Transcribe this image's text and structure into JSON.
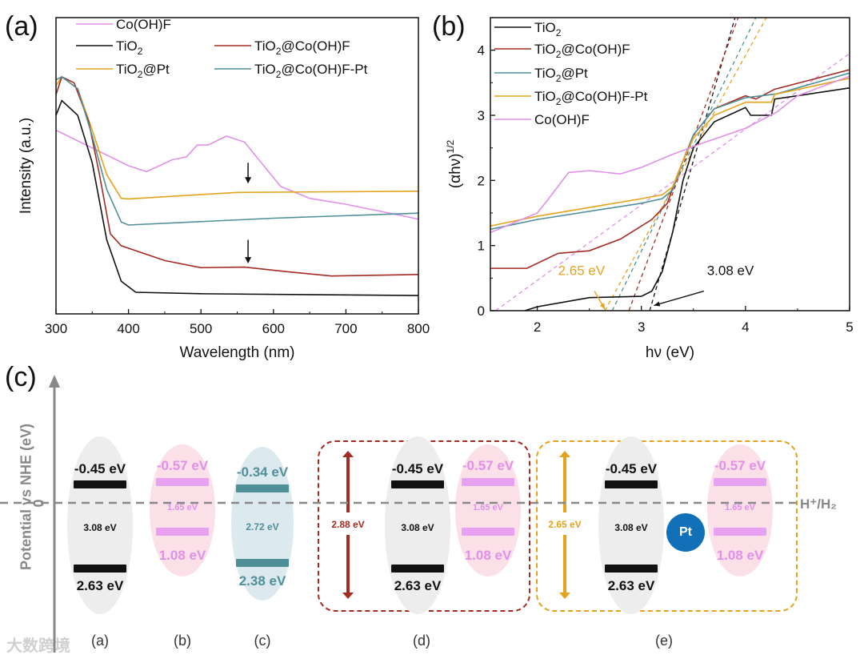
{
  "panel_labels": {
    "a": "(a)",
    "b": "(b)",
    "c": "(c)"
  },
  "colors": {
    "black": "#111111",
    "red": "#a52a22",
    "orange": "#e6a21c",
    "teal": "#4f8f98",
    "pink": "#e090e8",
    "gray": "#888888",
    "pt_blue": "#1170b8"
  },
  "chart_data": [
    {
      "type": "line",
      "title": "",
      "xlabel": "Wavelength (nm)",
      "ylabel": "Intensity (a.u.)",
      "xlim": [
        300,
        800
      ],
      "ylim": [
        0,
        1
      ],
      "xticks": [
        "300",
        "400",
        "500",
        "600",
        "700",
        "800"
      ],
      "legend": "top-left",
      "annotations": [
        {
          "type": "arrow",
          "x": 565,
          "y_from": 0.51,
          "y_to": 0.44
        },
        {
          "type": "arrow",
          "x": 565,
          "y_from": 0.25,
          "y_to": 0.17
        }
      ],
      "series": [
        {
          "name": "Co(OH)F",
          "name_main": "Co(OH)F",
          "color": "#e090e8",
          "points": [
            [
              300,
              0.62
            ],
            [
              350,
              0.56
            ],
            [
              400,
              0.5
            ],
            [
              425,
              0.48
            ],
            [
              460,
              0.52
            ],
            [
              480,
              0.53
            ],
            [
              495,
              0.57
            ],
            [
              510,
              0.57
            ],
            [
              535,
              0.6
            ],
            [
              560,
              0.58
            ],
            [
              590,
              0.49
            ],
            [
              610,
              0.43
            ],
            [
              650,
              0.39
            ],
            [
              700,
              0.37
            ],
            [
              800,
              0.32
            ]
          ]
        },
        {
          "name": "TiO2",
          "name_main": "TiO",
          "name_sub": "2",
          "name_tail": "",
          "color": "#111111",
          "points": [
            [
              300,
              0.67
            ],
            [
              308,
              0.72
            ],
            [
              330,
              0.67
            ],
            [
              350,
              0.51
            ],
            [
              370,
              0.25
            ],
            [
              390,
              0.11
            ],
            [
              410,
              0.073
            ],
            [
              500,
              0.068
            ],
            [
              800,
              0.062
            ]
          ]
        },
        {
          "name": "TiO2@Pt",
          "name_main": "TiO",
          "name_sub": "2",
          "name_tail": "@Pt",
          "color": "#e6a21c",
          "points": [
            [
              300,
              0.77
            ],
            [
              308,
              0.8
            ],
            [
              330,
              0.76
            ],
            [
              350,
              0.62
            ],
            [
              370,
              0.47
            ],
            [
              390,
              0.39
            ],
            [
              400,
              0.388
            ],
            [
              550,
              0.41
            ],
            [
              800,
              0.414
            ]
          ]
        },
        {
          "name": "TiO2@Co(OH)F",
          "name_main": "TiO",
          "name_sub": "2",
          "name_tail": "@Co(OH)F",
          "color": "#a52a22",
          "points": [
            [
              300,
              0.74
            ],
            [
              308,
              0.8
            ],
            [
              325,
              0.78
            ],
            [
              345,
              0.65
            ],
            [
              360,
              0.47
            ],
            [
              375,
              0.27
            ],
            [
              390,
              0.23
            ],
            [
              450,
              0.18
            ],
            [
              500,
              0.156
            ],
            [
              560,
              0.158
            ],
            [
              620,
              0.142
            ],
            [
              680,
              0.128
            ],
            [
              800,
              0.133
            ]
          ]
        },
        {
          "name": "TiO2@Co(OH)F-Pt",
          "name_main": "TiO",
          "name_sub": "2",
          "name_tail": "@Co(OH)F-Pt",
          "color": "#4f8f98",
          "points": [
            [
              300,
              0.79
            ],
            [
              308,
              0.8
            ],
            [
              330,
              0.76
            ],
            [
              350,
              0.6
            ],
            [
              370,
              0.42
            ],
            [
              390,
              0.31
            ],
            [
              400,
              0.3
            ],
            [
              600,
              0.323
            ],
            [
              800,
              0.34
            ]
          ]
        }
      ]
    },
    {
      "type": "line",
      "title": "",
      "xlabel": "hν (eV)",
      "ylabel_main": "(αhν)",
      "ylabel_sup": "1/2",
      "xlim": [
        1.55,
        5
      ],
      "ylim": [
        0,
        4.5
      ],
      "xticks": [
        "2",
        "3",
        "4",
        "5"
      ],
      "yticks": [
        "0",
        "1",
        "2",
        "3",
        "4"
      ],
      "legend": "top-left",
      "series": [
        {
          "name": "TiO2",
          "name_main": "TiO",
          "name_sub": "2",
          "name_tail": "",
          "color": "#111111",
          "points": [
            [
              1.88,
              0
            ],
            [
              2,
              0.06
            ],
            [
              2.5,
              0.2
            ],
            [
              3,
              0.22
            ],
            [
              3.1,
              0.3
            ],
            [
              3.2,
              0.6
            ],
            [
              3.3,
              1.2
            ],
            [
              3.4,
              2.0
            ],
            [
              3.5,
              2.5
            ],
            [
              3.7,
              2.9
            ],
            [
              4,
              3.12
            ],
            [
              4.05,
              3.0
            ],
            [
              4.25,
              3.0
            ],
            [
              4.28,
              3.25
            ],
            [
              4.5,
              3.3
            ],
            [
              5,
              3.42
            ]
          ]
        },
        {
          "name": "TiO2@Co(OH)F",
          "name_main": "TiO",
          "name_sub": "2",
          "name_tail": "@Co(OH)F",
          "color": "#a52a22",
          "points": [
            [
              1.55,
              0.65
            ],
            [
              1.9,
              0.65
            ],
            [
              2.2,
              0.88
            ],
            [
              2.5,
              0.92
            ],
            [
              2.8,
              1.1
            ],
            [
              3.1,
              1.4
            ],
            [
              3.25,
              1.65
            ],
            [
              3.35,
              2.1
            ],
            [
              3.5,
              2.7
            ],
            [
              3.7,
              3.1
            ],
            [
              4,
              3.3
            ],
            [
              4.1,
              3.25
            ],
            [
              4.28,
              3.4
            ],
            [
              5,
              3.7
            ]
          ]
        },
        {
          "name": "TiO2@Pt",
          "name_main": "TiO",
          "name_sub": "2",
          "name_tail": "@Pt",
          "color": "#4f8f98",
          "points": [
            [
              1.55,
              1.25
            ],
            [
              2,
              1.4
            ],
            [
              3,
              1.65
            ],
            [
              3.2,
              1.72
            ],
            [
              3.3,
              1.85
            ],
            [
              3.4,
              2.3
            ],
            [
              3.5,
              2.7
            ],
            [
              3.7,
              3.1
            ],
            [
              4,
              3.27
            ],
            [
              4.3,
              3.33
            ],
            [
              5,
              3.65
            ]
          ]
        },
        {
          "name": "TiO2@Co(OH)F-Pt",
          "name_main": "TiO",
          "name_sub": "2",
          "name_tail": "@Co(OH)F-Pt",
          "color": "#e6a21c",
          "points": [
            [
              1.55,
              1.3
            ],
            [
              2,
              1.45
            ],
            [
              3,
              1.72
            ],
            [
              3.2,
              1.78
            ],
            [
              3.3,
              1.9
            ],
            [
              3.4,
              2.3
            ],
            [
              3.5,
              2.65
            ],
            [
              3.7,
              3.0
            ],
            [
              4,
              3.2
            ],
            [
              4.25,
              3.2
            ],
            [
              4.28,
              3.32
            ],
            [
              5,
              3.57
            ]
          ]
        },
        {
          "name": "Co(OH)F",
          "name_main": "Co(OH)F",
          "name_sub": "",
          "name_tail": "",
          "color": "#e090e8",
          "points": [
            [
              1.55,
              1.2
            ],
            [
              2,
              1.5
            ],
            [
              2.1,
              1.7
            ],
            [
              2.3,
              2.12
            ],
            [
              2.5,
              2.15
            ],
            [
              2.8,
              2.1
            ],
            [
              3,
              2.2
            ],
            [
              3.3,
              2.4
            ],
            [
              3.6,
              2.58
            ],
            [
              4,
              2.8
            ],
            [
              4.3,
              3.05
            ],
            [
              4.5,
              3.3
            ],
            [
              5,
              3.6
            ]
          ]
        }
      ],
      "tangents": [
        {
          "color": "#111111",
          "from": [
            3.08,
            0
          ],
          "to": [
            3.9,
            4.5
          ]
        },
        {
          "color": "#a52a22",
          "from": [
            2.88,
            0
          ],
          "to": [
            3.93,
            4.5
          ]
        },
        {
          "color": "#4f8f98",
          "from": [
            2.72,
            0
          ],
          "to": [
            4.1,
            4.5
          ]
        },
        {
          "color": "#e6a21c",
          "from": [
            2.65,
            0
          ],
          "to": [
            4.2,
            4.5
          ]
        },
        {
          "color": "#e090e8",
          "from": [
            1.6,
            0
          ],
          "to": [
            5,
            3.95
          ]
        }
      ],
      "annotations": [
        {
          "text": "2.65 eV",
          "color": "#e6a21c",
          "x_text": 2.2,
          "y_text": 0.55,
          "arrow_to": [
            2.65,
            0.02
          ]
        },
        {
          "text": "3.08 eV",
          "color": "#111111",
          "x_text": 3.63,
          "y_text": 0.55,
          "arrow_to": [
            3.12,
            0.08
          ]
        }
      ]
    }
  ],
  "band_diagram": {
    "ylabel": "Potential vs NHE (eV)",
    "zero_label": "0",
    "reference": "H⁺/H₂",
    "pt_label": "Pt",
    "columns": [
      {
        "id": "a",
        "label": "(a)",
        "cb": "-0.45 eV",
        "vb": "2.63 eV",
        "gap": "3.08 eV",
        "color": "#111111",
        "ellipse": "#ededed"
      },
      {
        "id": "b",
        "label": "(b)",
        "cb": "-0.57 eV",
        "vb": "1.08 eV",
        "gap": "1.65 eV",
        "color": "#e8a0f0",
        "ellipse": "#fbe0e8"
      },
      {
        "id": "c",
        "label": "(c)",
        "cb": "-0.34 eV",
        "vb": "2.38 eV",
        "gap": "2.72 eV",
        "color": "#4f8f98",
        "ellipse": "#dce9ee"
      },
      {
        "id": "d",
        "label": "(d)",
        "total_gap": "2.88 eV",
        "box_color": "#a52a22"
      },
      {
        "id": "e",
        "label": "(e)",
        "total_gap": "2.65 eV",
        "box_color": "#e6a21c"
      }
    ],
    "composite_parts": {
      "tio2": {
        "cb": "-0.45 eV",
        "vb": "2.63 eV",
        "gap": "3.08 eV"
      },
      "cooh": {
        "cb": "-0.57 eV",
        "vb": "1.08 eV",
        "gap": "1.65 eV"
      }
    }
  },
  "watermark": "大数跨境"
}
